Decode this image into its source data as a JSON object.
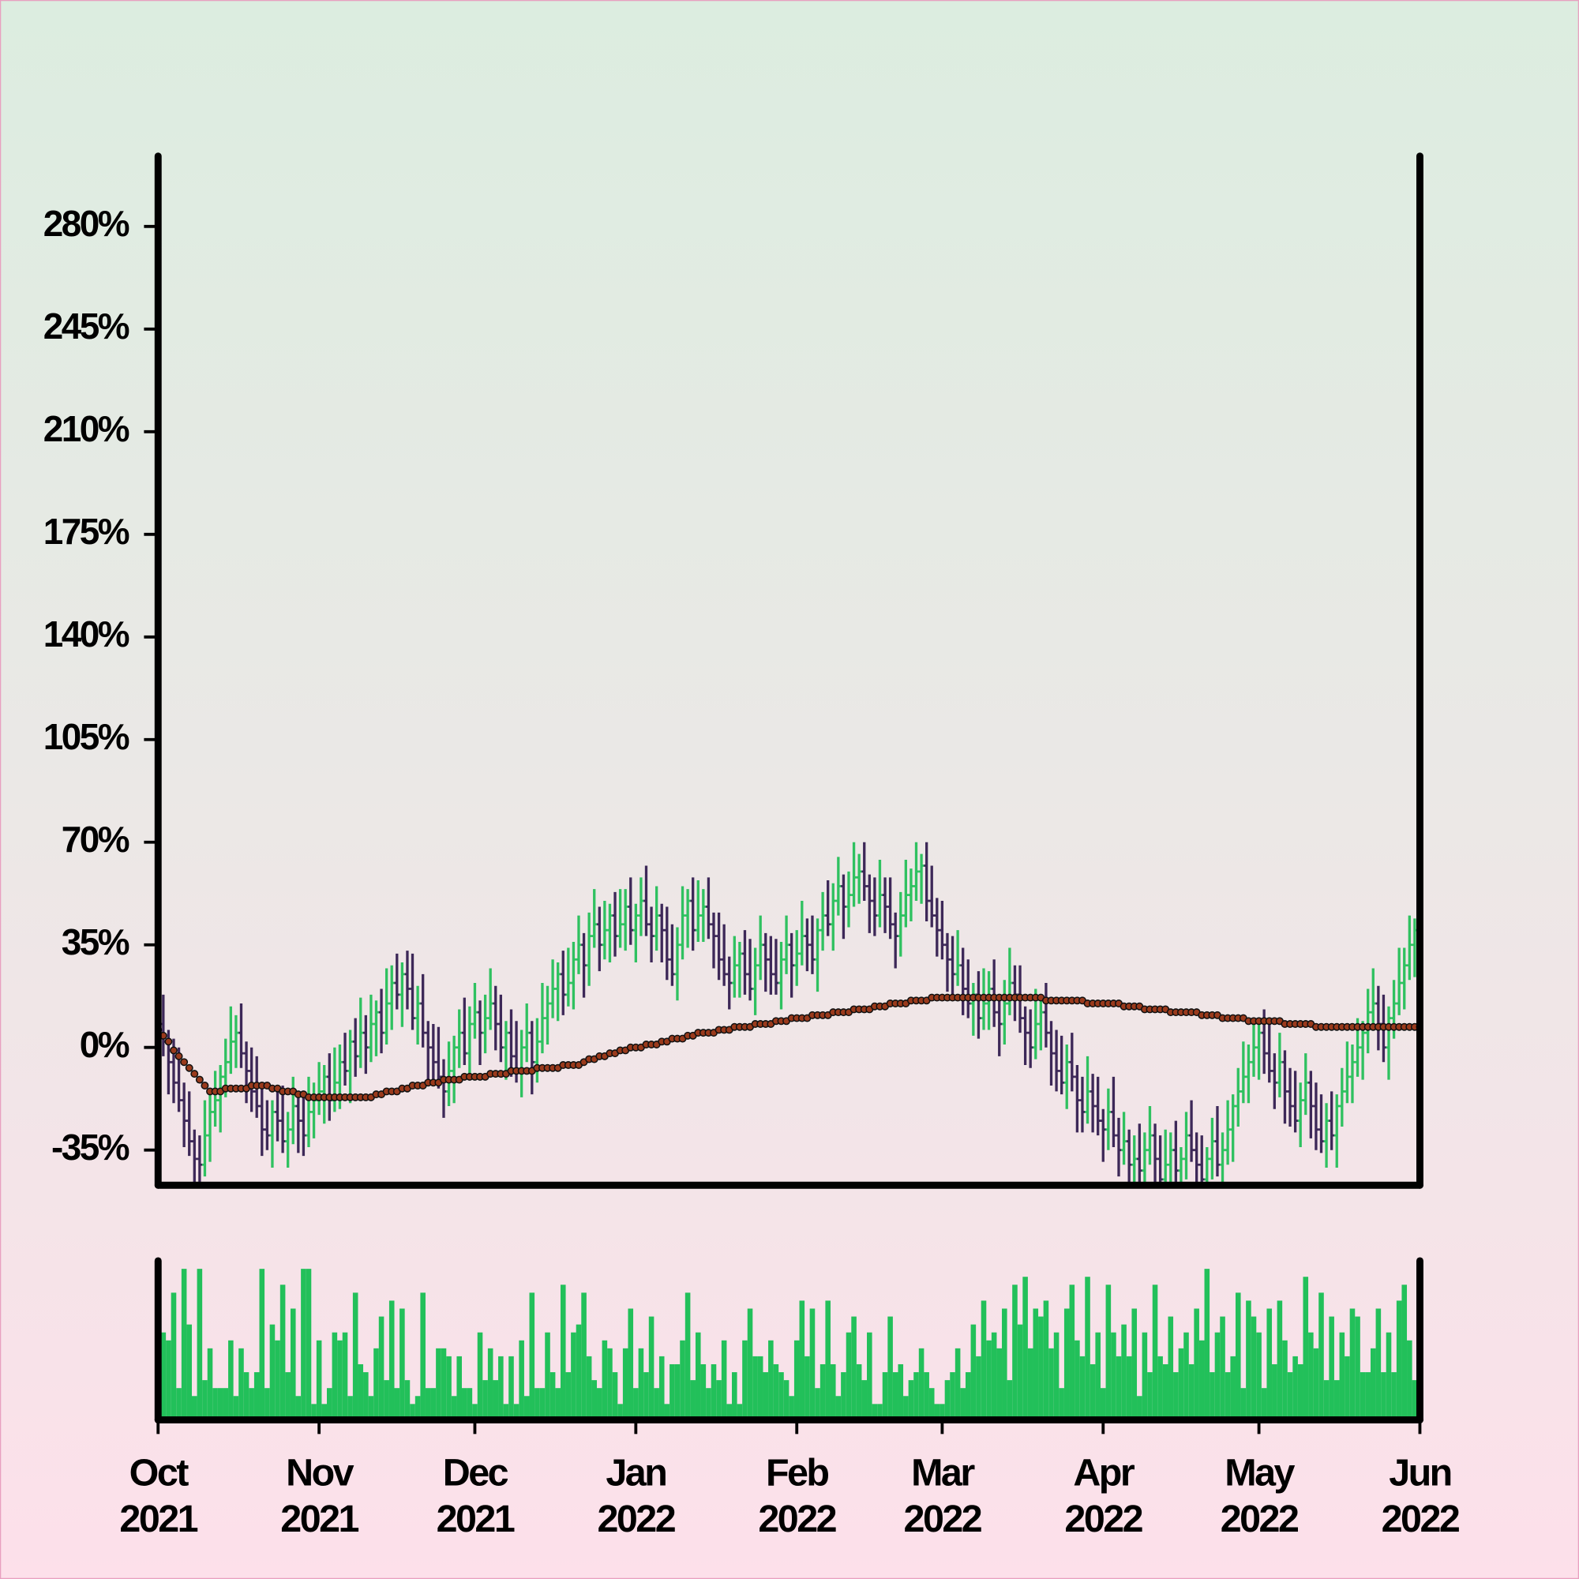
{
  "chart_data": {
    "type": "ohlc",
    "categories": [
      "Oct 2021",
      null,
      null,
      null,
      null,
      null,
      null,
      null,
      null,
      null,
      null,
      null,
      null,
      null,
      null,
      null,
      null,
      null,
      null,
      null,
      null,
      null,
      null,
      null,
      null,
      null,
      null,
      null,
      null,
      null,
      null,
      "Nov 2021",
      null,
      null,
      null,
      null,
      null,
      null,
      null,
      null,
      null,
      null,
      null,
      null,
      null,
      null,
      null,
      null,
      null,
      null,
      null,
      null,
      null,
      null,
      null,
      null,
      null,
      null,
      null,
      null,
      null,
      "Dec 2021",
      null,
      null,
      null,
      null,
      null,
      null,
      null,
      null,
      null,
      null,
      null,
      null,
      null,
      null,
      null,
      null,
      null,
      null,
      null,
      null,
      null,
      null,
      null,
      null,
      null,
      null,
      null,
      null,
      null,
      null,
      "Jan 2022",
      null,
      null,
      null,
      null,
      null,
      null,
      null,
      null,
      null,
      null,
      null,
      null,
      null,
      null,
      null,
      null,
      null,
      null,
      null,
      null,
      null,
      null,
      null,
      null,
      null,
      null,
      null,
      null,
      null,
      null,
      "Feb 2022",
      null,
      null,
      null,
      null,
      null,
      null,
      null,
      null,
      null,
      null,
      null,
      null,
      null,
      null,
      null,
      null,
      null,
      null,
      null,
      null,
      null,
      null,
      null,
      null,
      null,
      null,
      null,
      "Mar 2022",
      null,
      null,
      null,
      null,
      null,
      null,
      null,
      null,
      null,
      null,
      null,
      null,
      null,
      null,
      null,
      null,
      null,
      null,
      null,
      null,
      null,
      null,
      null,
      null,
      null,
      null,
      null,
      null,
      null,
      null,
      "Apr 2022",
      null,
      null,
      null,
      null,
      null,
      null,
      null,
      null,
      null,
      null,
      null,
      null,
      null,
      null,
      null,
      null,
      null,
      null,
      null,
      null,
      null,
      null,
      null,
      null,
      null,
      null,
      null,
      null,
      null,
      "May 2022",
      null,
      null,
      null,
      null,
      null,
      null,
      null,
      null,
      null,
      null,
      null,
      null,
      null,
      null,
      null,
      null,
      null,
      null,
      null,
      null,
      null,
      null,
      null,
      null,
      null,
      null,
      null,
      null,
      null,
      null,
      "Jun 2022"
    ],
    "open": [
      10,
      8,
      2,
      -5,
      -12,
      -18,
      -25,
      -32,
      -38,
      -40,
      -30,
      -22,
      -18,
      -10,
      -5,
      2,
      5,
      -2,
      -8,
      -15,
      -20,
      -28,
      -30,
      -22,
      -25,
      -32,
      -28,
      -20,
      -25,
      -30,
      -22,
      -18,
      -15,
      -10,
      -18,
      -12,
      -5,
      -8,
      2,
      -3,
      5,
      0,
      8,
      12,
      5,
      15,
      22,
      18,
      25,
      20,
      10,
      15,
      5,
      0,
      -5,
      -10,
      -15,
      -8,
      0,
      5,
      -2,
      8,
      12,
      5,
      10,
      15,
      8,
      0,
      5,
      -3,
      -8,
      0,
      5,
      -5,
      2,
      10,
      15,
      20,
      25,
      18,
      22,
      30,
      35,
      28,
      38,
      42,
      35,
      40,
      45,
      38,
      42,
      48,
      40,
      45,
      50,
      42,
      38,
      45,
      40,
      30,
      25,
      35,
      45,
      50,
      40,
      45,
      48,
      42,
      38,
      30,
      25,
      22,
      28,
      32,
      25,
      20,
      28,
      35,
      30,
      25,
      22,
      30,
      35,
      28,
      32,
      38,
      35,
      30,
      40,
      45,
      42,
      50,
      55,
      48,
      52,
      58,
      60,
      55,
      50,
      45,
      52,
      48,
      42,
      38,
      45,
      52,
      55,
      60,
      62,
      50,
      45,
      40,
      35,
      30,
      25,
      28,
      20,
      15,
      18,
      10,
      15,
      20,
      12,
      8,
      15,
      22,
      18,
      10,
      5,
      0,
      8,
      12,
      5,
      -2,
      -8,
      -12,
      -5,
      -10,
      -18,
      -22,
      -15,
      -20,
      -25,
      -28,
      -22,
      -30,
      -35,
      -32,
      -40,
      -38,
      -42,
      -35,
      -30,
      -38,
      -45,
      -40,
      -35,
      -42,
      -38,
      -30,
      -35,
      -40,
      -45,
      -38,
      -32,
      -40,
      -35,
      -28,
      -20,
      -15,
      -10,
      -5,
      0,
      5,
      -2,
      -8,
      -12,
      -5,
      -15,
      -20,
      -25,
      -18,
      -12,
      -20,
      -28,
      -32,
      -25,
      -30,
      -20,
      -15,
      -10,
      -5,
      0,
      5,
      12,
      15,
      8,
      0,
      10,
      15,
      22,
      28,
      35,
      null
    ],
    "high": [
      16,
      18,
      6,
      3,
      0,
      -12,
      -15,
      -28,
      -30,
      -18,
      -16,
      -8,
      -6,
      3,
      14,
      11,
      15,
      2,
      0,
      -3,
      -14,
      -18,
      -18,
      -14,
      -13,
      -22,
      -10,
      -16,
      -17,
      -10,
      -12,
      -5,
      -6,
      -2,
      0,
      1,
      5,
      6,
      10,
      17,
      11,
      18,
      16,
      20,
      27,
      28,
      32,
      29,
      33,
      32,
      21,
      25,
      9,
      8,
      7,
      -4,
      2,
      4,
      13,
      17,
      14,
      22,
      16,
      18,
      27,
      21,
      18,
      9,
      13,
      9,
      6,
      15,
      9,
      10,
      22,
      21,
      30,
      29,
      33,
      34,
      36,
      45,
      39,
      46,
      54,
      48,
      50,
      49,
      53,
      54,
      54,
      58,
      49,
      58,
      62,
      48,
      55,
      49,
      48,
      42,
      41,
      55,
      54,
      58,
      57,
      54,
      58,
      46,
      46,
      42,
      31,
      38,
      36,
      40,
      37,
      34,
      45,
      39,
      38,
      37,
      36,
      45,
      39,
      40,
      50,
      44,
      45,
      44,
      53,
      57,
      56,
      65,
      59,
      60,
      70,
      66,
      70,
      59,
      58,
      64,
      58,
      58,
      46,
      53,
      64,
      61,
      70,
      66,
      70,
      62,
      51,
      50,
      39,
      38,
      40,
      34,
      30,
      22,
      26,
      27,
      26,
      30,
      16,
      23,
      34,
      28,
      28,
      14,
      13,
      20,
      18,
      22,
      9,
      6,
      4,
      1,
      5,
      -6,
      -10,
      -3,
      -9,
      -10,
      -21,
      -14,
      -10,
      -24,
      -22,
      -28,
      -30,
      -26,
      -29,
      -20,
      -26,
      -30,
      -28,
      -29,
      -25,
      -34,
      -22,
      -18,
      -29,
      -30,
      -34,
      -24,
      -20,
      -29,
      -18,
      -16,
      -7,
      2,
      1,
      10,
      9,
      13,
      10,
      -2,
      5,
      -1,
      -7,
      -8,
      -12,
      -2,
      -8,
      -12,
      -16,
      -19,
      -15,
      -16,
      -7,
      2,
      1,
      10,
      9,
      20,
      27,
      21,
      18,
      14,
      23,
      34,
      34,
      45,
      44,
      null
    ],
    "low": [
      -1,
      -3,
      -16,
      -19,
      -22,
      -34,
      -37,
      -49,
      -47,
      -44,
      -39,
      -27,
      -29,
      -17,
      -9,
      -7,
      -7,
      -19,
      -22,
      -24,
      -37,
      -35,
      -41,
      -32,
      -36,
      -41,
      -33,
      -36,
      -37,
      -34,
      -31,
      -23,
      -26,
      -25,
      -22,
      -21,
      -13,
      -19,
      -10,
      -7,
      -9,
      -5,
      -3,
      -2,
      1,
      6,
      13,
      7,
      13,
      6,
      1,
      0,
      -11,
      -12,
      -14,
      -24,
      -20,
      -19,
      -7,
      -6,
      -11,
      3,
      -6,
      -2,
      6,
      -1,
      -5,
      -11,
      -10,
      -12,
      -17,
      -5,
      -16,
      -12,
      -2,
      1,
      10,
      9,
      11,
      14,
      13,
      25,
      17,
      21,
      34,
      26,
      30,
      29,
      31,
      34,
      33,
      35,
      29,
      38,
      38,
      29,
      33,
      29,
      23,
      21,
      16,
      30,
      34,
      33,
      36,
      36,
      37,
      27,
      23,
      21,
      13,
      17,
      17,
      18,
      16,
      11,
      23,
      19,
      18,
      18,
      13,
      25,
      17,
      21,
      28,
      26,
      25,
      19,
      33,
      38,
      33,
      45,
      37,
      41,
      48,
      49,
      50,
      39,
      38,
      41,
      39,
      37,
      27,
      31,
      41,
      43,
      50,
      49,
      43,
      41,
      31,
      30,
      19,
      18,
      21,
      11,
      10,
      4,
      3,
      6,
      6,
      7,
      -3,
      1,
      11,
      9,
      5,
      -6,
      -7,
      -4,
      -1,
      0,
      -13,
      -15,
      -16,
      -21,
      -15,
      -29,
      -29,
      -26,
      -29,
      -30,
      -39,
      -35,
      -34,
      -44,
      -40,
      -51,
      -47,
      -46,
      -51,
      -40,
      -49,
      -52,
      -49,
      -49,
      -47,
      -53,
      -45,
      -39,
      -49,
      -50,
      -56,
      -45,
      -44,
      -49,
      -40,
      -39,
      -27,
      -19,
      -19,
      -10,
      -11,
      -9,
      -12,
      -21,
      -17,
      -26,
      -27,
      -29,
      -34,
      -23,
      -31,
      -35,
      -36,
      -41,
      -35,
      -41,
      -27,
      -19,
      -19,
      -10,
      -11,
      -2,
      8,
      -1,
      -5,
      -11,
      3,
      11,
      13,
      23,
      24,
      null
    ],
    "close": [
      8,
      2,
      -5,
      -12,
      -18,
      -25,
      -32,
      -38,
      -40,
      -30,
      -22,
      -18,
      -10,
      -5,
      2,
      5,
      -2,
      -8,
      -15,
      -20,
      -28,
      -30,
      -22,
      -25,
      -32,
      -28,
      -20,
      -25,
      -30,
      -22,
      -18,
      -15,
      -10,
      -18,
      -12,
      -5,
      -8,
      2,
      -3,
      5,
      0,
      8,
      12,
      5,
      15,
      22,
      18,
      25,
      20,
      10,
      15,
      5,
      0,
      -5,
      -10,
      -15,
      -8,
      0,
      5,
      -2,
      8,
      12,
      5,
      10,
      15,
      8,
      0,
      5,
      -3,
      -8,
      0,
      5,
      -5,
      2,
      10,
      15,
      20,
      25,
      18,
      22,
      30,
      35,
      28,
      38,
      42,
      35,
      40,
      45,
      38,
      42,
      48,
      40,
      45,
      50,
      42,
      38,
      45,
      40,
      30,
      25,
      35,
      45,
      50,
      40,
      45,
      48,
      42,
      38,
      30,
      25,
      22,
      28,
      32,
      25,
      20,
      28,
      35,
      30,
      25,
      22,
      30,
      35,
      28,
      32,
      38,
      35,
      30,
      40,
      45,
      42,
      50,
      55,
      48,
      52,
      58,
      60,
      55,
      50,
      45,
      52,
      48,
      42,
      38,
      45,
      52,
      55,
      60,
      62,
      50,
      45,
      40,
      35,
      30,
      25,
      28,
      20,
      15,
      18,
      10,
      15,
      20,
      12,
      8,
      15,
      22,
      18,
      10,
      5,
      0,
      8,
      12,
      5,
      -2,
      -8,
      -12,
      -5,
      -10,
      -18,
      -22,
      -15,
      -20,
      -25,
      -28,
      -22,
      -30,
      -35,
      -32,
      -40,
      -38,
      -42,
      -35,
      -30,
      -38,
      -45,
      -40,
      -35,
      -42,
      -38,
      -30,
      -35,
      -40,
      -45,
      -38,
      -32,
      -40,
      -35,
      -28,
      -20,
      -15,
      -10,
      -5,
      0,
      5,
      -2,
      -8,
      -12,
      -5,
      -15,
      -20,
      -25,
      -18,
      -12,
      -20,
      -28,
      -32,
      -25,
      -30,
      -20,
      -15,
      -10,
      -5,
      0,
      5,
      12,
      15,
      8,
      0,
      10,
      15,
      22,
      28,
      35,
      40,
      null
    ],
    "up_color": "#2fc160",
    "down_color": "#3d2858",
    "ma": {
      "color": "#9a3a1c",
      "values": [
        6,
        4,
        2,
        -1,
        -3,
        -5,
        -7,
        -9,
        -11,
        -13,
        -15,
        -15,
        -15,
        -14,
        -14,
        -14,
        -14,
        -14,
        -13,
        -13,
        -13,
        -13,
        -14,
        -14,
        -15,
        -15,
        -15,
        -16,
        -16,
        -17,
        -17,
        -17,
        -17,
        -17,
        -17,
        -17,
        -17,
        -17,
        -17,
        -17,
        -17,
        -17,
        -16,
        -16,
        -15,
        -15,
        -15,
        -14,
        -14,
        -13,
        -13,
        -13,
        -12,
        -12,
        -12,
        -11,
        -11,
        -11,
        -11,
        -10,
        -10,
        -10,
        -10,
        -10,
        -9,
        -9,
        -9,
        -9,
        -8,
        -8,
        -8,
        -8,
        -8,
        -7,
        -7,
        -7,
        -7,
        -7,
        -6,
        -6,
        -6,
        -6,
        -5,
        -4,
        -4,
        -3,
        -3,
        -2,
        -2,
        -1,
        -1,
        0,
        0,
        0,
        1,
        1,
        1,
        2,
        2,
        3,
        3,
        3,
        4,
        4,
        5,
        5,
        5,
        5,
        6,
        6,
        6,
        7,
        7,
        7,
        7,
        8,
        8,
        8,
        8,
        9,
        9,
        9,
        10,
        10,
        10,
        10,
        11,
        11,
        11,
        11,
        12,
        12,
        12,
        12,
        13,
        13,
        13,
        13,
        14,
        14,
        14,
        15,
        15,
        15,
        15,
        16,
        16,
        16,
        16,
        17,
        17,
        17,
        17,
        17,
        17,
        17,
        17,
        17,
        17,
        17,
        17,
        17,
        17,
        17,
        17,
        17,
        17,
        17,
        17,
        17,
        17,
        16,
        16,
        16,
        16,
        16,
        16,
        16,
        16,
        15,
        15,
        15,
        15,
        15,
        15,
        15,
        14,
        14,
        14,
        14,
        13,
        13,
        13,
        13,
        13,
        12,
        12,
        12,
        12,
        12,
        12,
        11,
        11,
        11,
        11,
        10,
        10,
        10,
        10,
        10,
        9,
        9,
        9,
        9,
        9,
        9,
        9,
        8,
        8,
        8,
        8,
        8,
        8,
        7,
        7,
        7,
        7,
        7,
        7,
        7,
        7,
        7,
        7,
        7,
        7,
        7,
        7,
        7,
        7,
        7,
        7,
        7,
        7,
        7,
        null
      ]
    },
    "volume": {
      "color": "#22c05a",
      "values": [
        35,
        55,
        50,
        80,
        20,
        95,
        60,
        15,
        95,
        25,
        45,
        20,
        20,
        20,
        50,
        15,
        45,
        30,
        20,
        30,
        95,
        20,
        60,
        50,
        85,
        30,
        70,
        15,
        95,
        95,
        10,
        50,
        10,
        20,
        55,
        50,
        55,
        15,
        80,
        35,
        30,
        15,
        45,
        65,
        25,
        75,
        20,
        70,
        25,
        10,
        15,
        80,
        20,
        20,
        45,
        45,
        40,
        15,
        40,
        20,
        20,
        10,
        55,
        25,
        45,
        25,
        40,
        10,
        40,
        10,
        50,
        15,
        80,
        20,
        20,
        55,
        30,
        20,
        85,
        30,
        55,
        60,
        80,
        40,
        25,
        20,
        50,
        45,
        30,
        10,
        45,
        70,
        20,
        45,
        30,
        65,
        20,
        40,
        10,
        35,
        35,
        50,
        80,
        25,
        55,
        35,
        20,
        35,
        25,
        50,
        10,
        30,
        10,
        50,
        70,
        40,
        40,
        30,
        50,
        35,
        30,
        25,
        15,
        50,
        75,
        40,
        70,
        20,
        35,
        75,
        35,
        15,
        30,
        55,
        65,
        35,
        25,
        55,
        10,
        10,
        30,
        65,
        30,
        35,
        15,
        25,
        30,
        45,
        30,
        20,
        10,
        10,
        25,
        30,
        45,
        20,
        30,
        60,
        40,
        75,
        50,
        55,
        45,
        70,
        25,
        85,
        60,
        90,
        45,
        70,
        65,
        75,
        45,
        55,
        20,
        70,
        85,
        50,
        40,
        90,
        35,
        55,
        20,
        85,
        55,
        40,
        60,
        40,
        70,
        15,
        55,
        30,
        85,
        40,
        35,
        65,
        30,
        45,
        55,
        35,
        70,
        50,
        95,
        30,
        55,
        65,
        30,
        40,
        80,
        20,
        75,
        65,
        55,
        20,
        70,
        35,
        75,
        50,
        30,
        40,
        35,
        90,
        55,
        45,
        80,
        25,
        65,
        25,
        55,
        40,
        70,
        65,
        30,
        30,
        45,
        70,
        30,
        55,
        30,
        75,
        85,
        50,
        25,
        null
      ]
    },
    "ylim": [
      -47,
      304
    ],
    "yticks": [
      {
        "value": -35,
        "label": "-35%"
      },
      {
        "value": 0,
        "label": "0%"
      },
      {
        "value": 35,
        "label": "35%"
      },
      {
        "value": 70,
        "label": "70%"
      },
      {
        "value": 105,
        "label": "105%"
      },
      {
        "value": 140,
        "label": "140%"
      },
      {
        "value": 175,
        "label": "175%"
      },
      {
        "value": 210,
        "label": "210%"
      },
      {
        "value": 245,
        "label": "245%"
      },
      {
        "value": 280,
        "label": "280%"
      }
    ],
    "grid": false
  }
}
